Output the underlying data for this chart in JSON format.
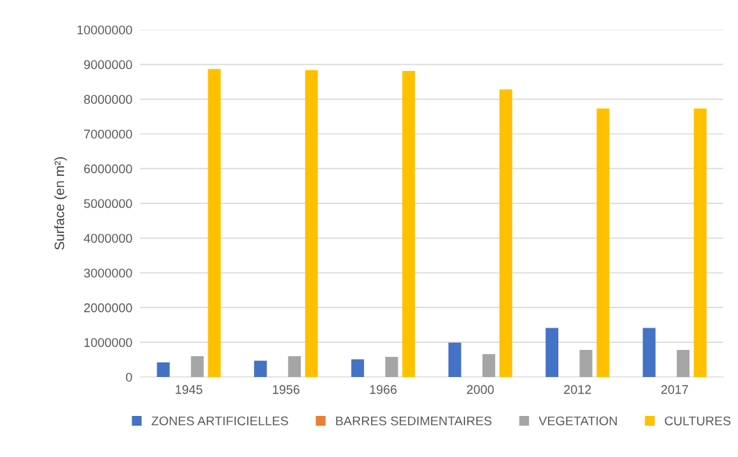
{
  "chart_data": {
    "type": "bar",
    "ylabel": "Surface (en m²)",
    "categories": [
      "1945",
      "1956",
      "1966",
      "2000",
      "2012",
      "2017"
    ],
    "series": [
      {
        "name": "ZONES ARTIFICIELLES",
        "color": "#4472c4",
        "values": [
          420000,
          470000,
          510000,
          990000,
          1410000,
          1410000
        ]
      },
      {
        "name": "BARRES SEDIMENTAIRES",
        "color": "#ed7d31",
        "values": [
          0,
          0,
          0,
          0,
          0,
          0
        ]
      },
      {
        "name": "VEGETATION",
        "color": "#a5a5a5",
        "values": [
          600000,
          600000,
          580000,
          660000,
          780000,
          780000
        ]
      },
      {
        "name": "CULTURES",
        "color": "#ffc000",
        "values": [
          8870000,
          8840000,
          8810000,
          8280000,
          7730000,
          7730000
        ]
      }
    ],
    "ylim": [
      0,
      10000000
    ],
    "yticks": [
      0,
      1000000,
      2000000,
      3000000,
      4000000,
      5000000,
      6000000,
      7000000,
      8000000,
      9000000,
      10000000
    ],
    "grid": "y",
    "legend": "bottom"
  }
}
